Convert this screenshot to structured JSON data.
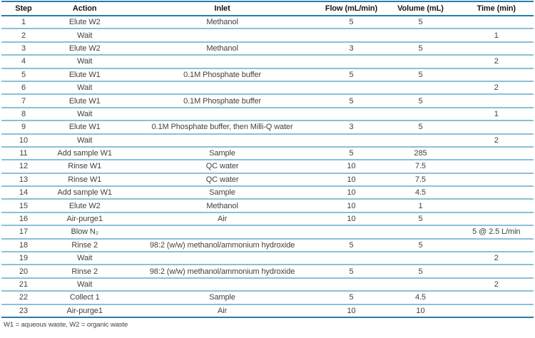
{
  "colors": {
    "line_strong": "#2a7cab",
    "line_light": "#8bc0da",
    "header_text": "#161616",
    "body_text": "#414141"
  },
  "table": {
    "columns": [
      {
        "key": "step",
        "label": "Step"
      },
      {
        "key": "action",
        "label": "Action"
      },
      {
        "key": "inlet",
        "label": "Inlet"
      },
      {
        "key": "flow",
        "label": "Flow (mL/min)"
      },
      {
        "key": "volume",
        "label": "Volume (mL)"
      },
      {
        "key": "time",
        "label": "Time (min)"
      }
    ],
    "rows": [
      [
        "1",
        "Elute W2",
        "Methanol",
        "5",
        "5",
        ""
      ],
      [
        "2",
        "Wait",
        "",
        "",
        "",
        "1"
      ],
      [
        "3",
        "Elute W2",
        "Methanol",
        "3",
        "5",
        ""
      ],
      [
        "4",
        "Wait",
        "",
        "",
        "",
        "2"
      ],
      [
        "5",
        "Elute W1",
        "0.1M Phosphate buffer",
        "5",
        "5",
        ""
      ],
      [
        "6",
        "Wait",
        "",
        "",
        "",
        "2"
      ],
      [
        "7",
        "Elute W1",
        "0.1M Phosphate buffer",
        "5",
        "5",
        ""
      ],
      [
        "8",
        "Wait",
        "",
        "",
        "",
        "1"
      ],
      [
        "9",
        "Elute W1",
        "0.1M Phosphate buffer, then Milli-Q water",
        "3",
        "5",
        ""
      ],
      [
        "10",
        "Wait",
        "",
        "",
        "",
        "2"
      ],
      [
        "11",
        "Add sample W1",
        "Sample",
        "5",
        "285",
        ""
      ],
      [
        "12",
        "Rinse W1",
        "QC water",
        "10",
        "7.5",
        ""
      ],
      [
        "13",
        "Rinse W1",
        "QC water",
        "10",
        "7.5",
        ""
      ],
      [
        "14",
        "Add sample W1",
        "Sample",
        "10",
        "4.5",
        ""
      ],
      [
        "15",
        "Elute W2",
        "Methanol",
        "10",
        "1",
        ""
      ],
      [
        "16",
        "Air-purge1",
        "Air",
        "10",
        "5",
        ""
      ],
      [
        "17",
        "Blow N₂",
        "",
        "",
        "",
        "5 @ 2.5 L/min"
      ],
      [
        "18",
        "Rinse 2",
        "98:2 (w/w) methanol/ammonium hydroxide",
        "5",
        "5",
        ""
      ],
      [
        "19",
        "Wait",
        "",
        "",
        "",
        "2"
      ],
      [
        "20",
        "Rinse 2",
        "98:2 (w/w) methanol/ammonium hydroxide",
        "5",
        "5",
        ""
      ],
      [
        "21",
        "Wait",
        "",
        "",
        "",
        "2"
      ],
      [
        "22",
        "Collect 1",
        "Sample",
        "5",
        "4.5",
        ""
      ],
      [
        "23",
        "Air-purge1",
        "Air",
        "10",
        "10",
        ""
      ]
    ],
    "footnote": "W1 = aqueous waste, W2 = organic waste"
  }
}
